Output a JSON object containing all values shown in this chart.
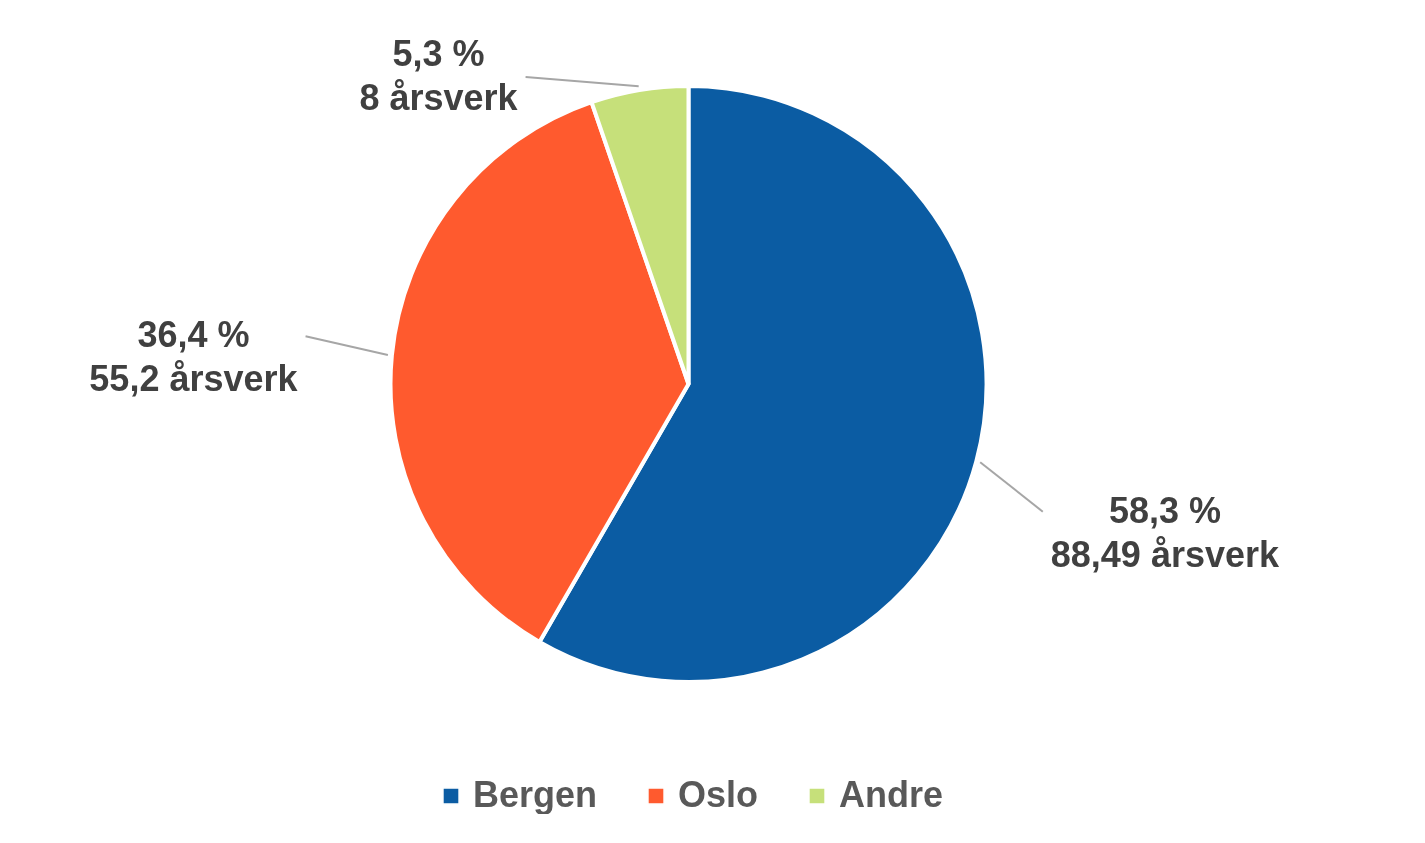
{
  "chart_data": {
    "type": "pie",
    "categories": [
      "Bergen",
      "Oslo",
      "Andre"
    ],
    "values": [
      88.49,
      55.2,
      8
    ],
    "colors": [
      "#0b5ca3",
      "#ff5a2e",
      "#c6e07a"
    ],
    "value_labels": [
      "58,3 %\n88,49 årsverk",
      "36,4 %\n55,2 årsverk",
      "5,3 %\n8 årsverk"
    ],
    "legend": "bottom"
  }
}
